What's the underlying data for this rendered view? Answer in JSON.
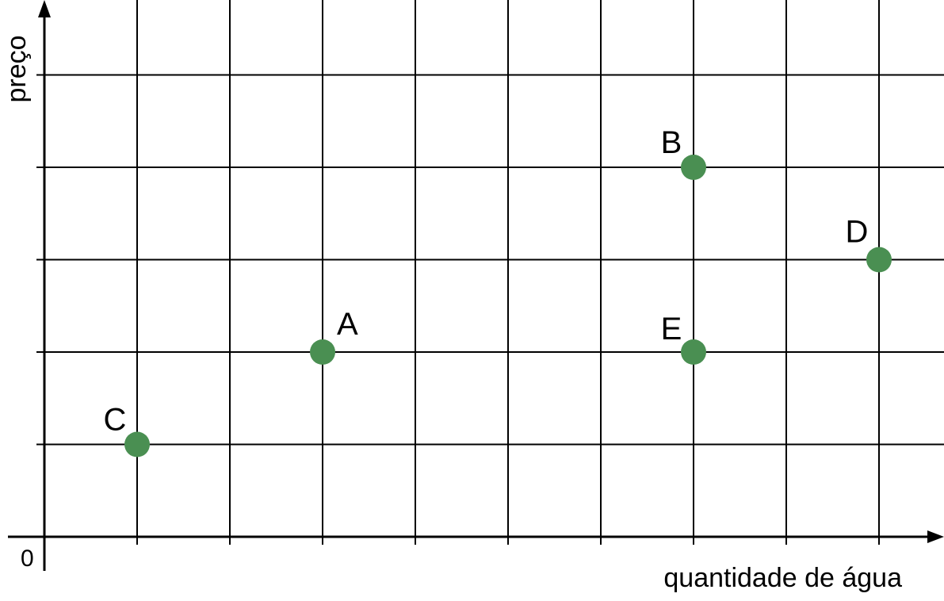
{
  "chart_data": {
    "type": "scatter",
    "title": "",
    "xlabel": "quantidade de água",
    "ylabel": "preço",
    "origin_label": "0",
    "xlim": [
      0,
      9.5
    ],
    "ylim": [
      0,
      5.6
    ],
    "grid": true,
    "x_ticks": [
      1,
      2,
      3,
      4,
      5,
      6,
      7,
      8,
      9
    ],
    "y_ticks": [
      1,
      2,
      3,
      4,
      5
    ],
    "point_color": "#4a8f52",
    "points": [
      {
        "label": "A",
        "x": 3,
        "y": 2
      },
      {
        "label": "B",
        "x": 7,
        "y": 4
      },
      {
        "label": "C",
        "x": 1,
        "y": 1
      },
      {
        "label": "D",
        "x": 9,
        "y": 3
      },
      {
        "label": "E",
        "x": 7,
        "y": 2
      }
    ]
  }
}
